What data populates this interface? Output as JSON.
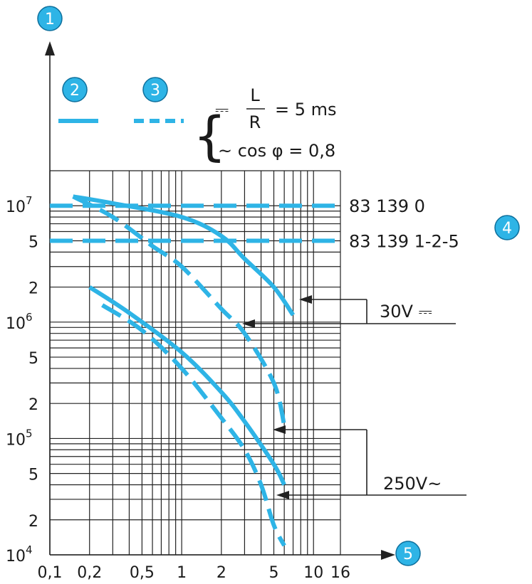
{
  "chart_data": {
    "type": "line",
    "title": "",
    "x_axis": {
      "scale": "log",
      "range": [
        0.1,
        16
      ],
      "tick_labels": [
        "0,1",
        "0,2",
        "0,5",
        "1",
        "2",
        "5",
        "10",
        "16"
      ],
      "tick_values": [
        0.1,
        0.2,
        0.5,
        1,
        2,
        5,
        10,
        16
      ]
    },
    "y_axis": {
      "scale": "log",
      "range": [
        10000,
        20000000
      ],
      "ticks": [
        {
          "value": 10000000,
          "mantissa": "10",
          "exp": "7"
        },
        {
          "value": 5000000,
          "mantissa": "5",
          "exp": ""
        },
        {
          "value": 2000000,
          "mantissa": "2",
          "exp": ""
        },
        {
          "value": 1000000,
          "mantissa": "10",
          "exp": "6"
        },
        {
          "value": 500000,
          "mantissa": "5",
          "exp": ""
        },
        {
          "value": 200000,
          "mantissa": "2",
          "exp": ""
        },
        {
          "value": 100000,
          "mantissa": "10",
          "exp": "5"
        },
        {
          "value": 50000,
          "mantissa": "5",
          "exp": ""
        },
        {
          "value": 20000,
          "mantissa": "2",
          "exp": ""
        },
        {
          "value": 10000,
          "mantissa": "10",
          "exp": "4"
        }
      ]
    },
    "grid": true,
    "color": "#2eb4e6",
    "legend": {
      "solid_marker": "2",
      "dashed_marker": "3",
      "dc_symbol": "⎓",
      "dc_formula_num": "L",
      "dc_formula_den": "R",
      "dc_formula_rest": "= 5 ms",
      "ac_text": "~ cos φ = 0,8"
    },
    "reference_lines": [
      {
        "label": "83 139 0",
        "y": 10000000
      },
      {
        "label": "83 139 1-2-5",
        "y": 5000000,
        "marker": "4"
      }
    ],
    "series": [
      {
        "style": "solid",
        "points": [
          [
            0.15,
            12000000
          ],
          [
            0.3,
            10500000
          ],
          [
            1,
            8000000
          ],
          [
            2,
            5500000
          ],
          [
            3,
            3500000
          ],
          [
            5,
            2000000
          ],
          [
            7,
            1150000
          ]
        ]
      },
      {
        "style": "dashed",
        "points": [
          [
            0.15,
            12000000
          ],
          [
            0.3,
            8000000
          ],
          [
            0.6,
            4500000
          ],
          [
            1,
            3000000
          ],
          [
            2,
            1300000
          ],
          [
            3,
            800000
          ],
          [
            5,
            300000
          ],
          [
            6,
            130000
          ]
        ]
      },
      {
        "style": "solid",
        "points": [
          [
            0.2,
            2000000
          ],
          [
            0.4,
            1200000
          ],
          [
            1,
            550000
          ],
          [
            2,
            250000
          ],
          [
            3,
            140000
          ],
          [
            5,
            60000
          ],
          [
            6,
            40000
          ]
        ]
      },
      {
        "style": "dashed",
        "points": [
          [
            0.25,
            1400000
          ],
          [
            0.5,
            850000
          ],
          [
            1,
            400000
          ],
          [
            2,
            150000
          ],
          [
            3,
            80000
          ],
          [
            4,
            40000
          ],
          [
            5,
            18000
          ],
          [
            6,
            12000
          ]
        ]
      }
    ],
    "annotations": [
      {
        "text": "30V",
        "symbol": "⎓"
      },
      {
        "text": "250V~"
      }
    ],
    "axis_markers": {
      "y": "1",
      "x": "5"
    }
  }
}
